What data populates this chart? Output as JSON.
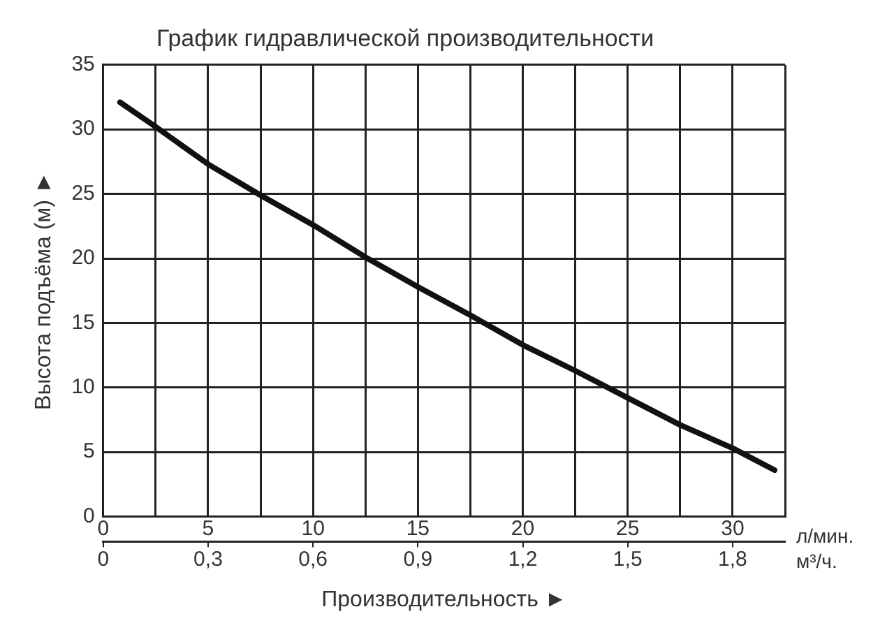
{
  "chart_data": {
    "type": "line",
    "title": "График гидравлической производительности",
    "xlabel": "Производительность ►",
    "ylabel": "Высота подъёма (м) ►",
    "x": [
      0.8,
      2.5,
      5,
      7.5,
      10,
      12.5,
      15,
      17.5,
      20,
      22.5,
      25,
      27.5,
      30,
      32
    ],
    "series": [
      {
        "color": "#111111",
        "values": [
          32.1,
          30.2,
          27.3,
          24.9,
          22.6,
          20.1,
          17.8,
          15.6,
          13.3,
          11.3,
          9.2,
          7.1,
          5.3,
          3.6
        ]
      }
    ],
    "xlim": [
      0,
      32.5
    ],
    "xticks": [
      0,
      {
        "value": 2.5,
        "label": null
      },
      5,
      {
        "value": 7.5,
        "label": null
      },
      10,
      {
        "value": 12.5,
        "label": null
      },
      15,
      {
        "value": 17.5,
        "label": null
      },
      20,
      {
        "value": 22.5,
        "label": null
      },
      25,
      {
        "value": 27.5,
        "label": null
      },
      30,
      {
        "value": 32.5,
        "label": null
      }
    ],
    "x2lim": [
      0,
      1.95
    ],
    "x2ticks": [
      0,
      {
        "value": 0.3,
        "label": "0,3"
      },
      {
        "value": 0.6,
        "label": "0,6"
      },
      {
        "value": 0.9,
        "label": "0,9"
      },
      {
        "value": 1.2,
        "label": "1,2"
      },
      {
        "value": 1.5,
        "label": "1,5"
      },
      {
        "value": 1.8,
        "label": "1,8"
      }
    ],
    "ylim": [
      0,
      35
    ],
    "yticks": [
      0,
      5,
      10,
      15,
      20,
      25,
      30,
      35
    ],
    "annotations": [
      "л/мин.",
      "м³/ч."
    ],
    "grid": true,
    "legend": false,
    "marker": "none",
    "line_style": "solid"
  }
}
